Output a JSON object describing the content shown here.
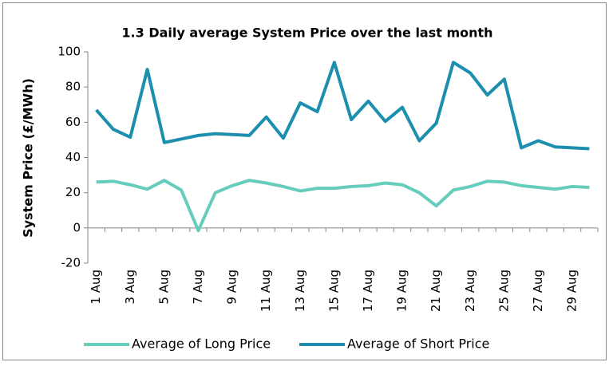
{
  "chart_data": {
    "type": "line",
    "title": "1.3 Daily average System Price over the last month",
    "y_label": "System Price (£/MWh)",
    "categories": [
      "1 Aug",
      null,
      "3 Aug",
      null,
      "5 Aug",
      null,
      "7 Aug",
      null,
      "9 Aug",
      null,
      "11 Aug",
      null,
      "13 Aug",
      null,
      "15 Aug",
      null,
      "17 Aug",
      null,
      "19 Aug",
      null,
      "21 Aug",
      null,
      "23 Aug",
      null,
      "25 Aug",
      null,
      "27 Aug",
      null,
      "29 Aug",
      null
    ],
    "series": [
      {
        "name": "Average of Long Price",
        "color": "#66ccbb",
        "values": [
          26,
          26.5,
          24.5,
          22,
          27,
          21.5,
          -1.5,
          20,
          24,
          27,
          25.5,
          23.5,
          21,
          22.5,
          22.5,
          23.5,
          24,
          25.5,
          24.5,
          20,
          12.5,
          21.5,
          23.5,
          26.5,
          26,
          24,
          23,
          22,
          23.5,
          23
        ]
      },
      {
        "name": "Average of Short Price",
        "color": "#1b8fad",
        "values": [
          67,
          56,
          51.5,
          90,
          48.5,
          50.5,
          52.5,
          53.5,
          53,
          52.5,
          63,
          51,
          71,
          66,
          94,
          61.5,
          72,
          60.5,
          68.5,
          49.5,
          59.5,
          94,
          88,
          75.5,
          84.5,
          45.5,
          49.5,
          46,
          45.5,
          45
        ]
      }
    ],
    "ylim": [
      -20,
      100
    ],
    "yticks": [
      -20,
      0,
      20,
      40,
      60,
      80,
      100
    ],
    "grid": false,
    "legend": "bottom"
  }
}
